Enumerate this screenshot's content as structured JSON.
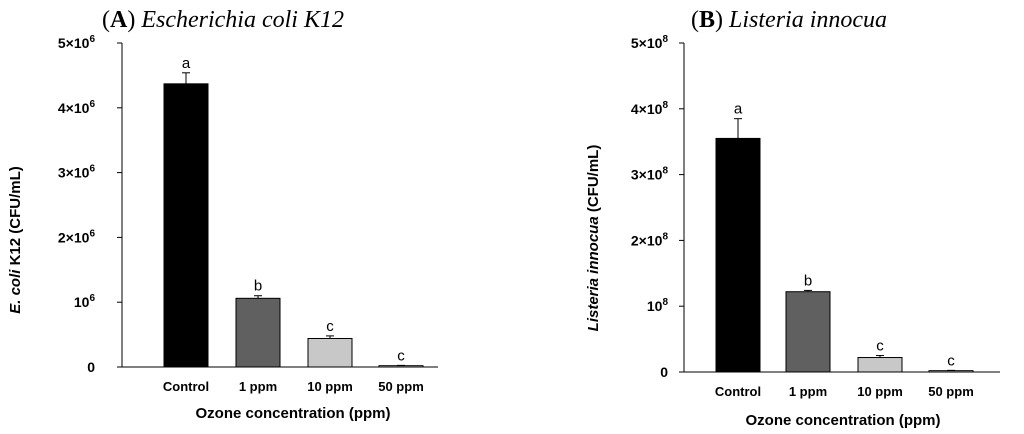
{
  "chart_data": [
    {
      "type": "bar",
      "panel_label": "A",
      "title": "Escherichia coli K12",
      "ylabel_italic": "E. coli",
      "ylabel_rest": " K12 (CFU/mL)",
      "xlabel": "Ozone concentration (ppm)",
      "categories": [
        "Control",
        "1 ppm",
        "10 ppm",
        "50 ppm"
      ],
      "values": [
        4370000,
        1060000,
        440000,
        20000
      ],
      "errors": [
        170000,
        40000,
        40000,
        5000
      ],
      "significance": [
        "a",
        "b",
        "c",
        "c"
      ],
      "colors": [
        "#000000",
        "#606060",
        "#c8c8c8",
        "#ffffff"
      ],
      "ylim": [
        0,
        5000000
      ],
      "yticks": [
        {
          "value": 0,
          "base": "0",
          "exp": ""
        },
        {
          "value": 1000000,
          "base": "10",
          "exp": "6"
        },
        {
          "value": 2000000,
          "base": "2×10",
          "exp": "6"
        },
        {
          "value": 3000000,
          "base": "3×10",
          "exp": "6"
        },
        {
          "value": 4000000,
          "base": "4×10",
          "exp": "6"
        },
        {
          "value": 5000000,
          "base": "5×10",
          "exp": "6"
        }
      ]
    },
    {
      "type": "bar",
      "panel_label": "B",
      "title": "Listeria innocua",
      "ylabel_italic": "Listeria innocua",
      "ylabel_rest": " (CFU/mL)",
      "xlabel": "Ozone concentration (ppm)",
      "categories": [
        "Control",
        "1 ppm",
        "10 ppm",
        "50 ppm"
      ],
      "values": [
        355000000,
        122000000,
        22000000,
        2000000
      ],
      "errors": [
        30000000,
        2000000,
        3000000,
        500000
      ],
      "significance": [
        "a",
        "b",
        "c",
        "c"
      ],
      "colors": [
        "#000000",
        "#606060",
        "#c8c8c8",
        "#ffffff"
      ],
      "ylim": [
        0,
        500000000
      ],
      "yticks": [
        {
          "value": 0,
          "base": "0",
          "exp": ""
        },
        {
          "value": 100000000,
          "base": "10",
          "exp": "8"
        },
        {
          "value": 200000000,
          "base": "2×10",
          "exp": "8"
        },
        {
          "value": 300000000,
          "base": "3×10",
          "exp": "8"
        },
        {
          "value": 400000000,
          "base": "4×10",
          "exp": "8"
        },
        {
          "value": 500000000,
          "base": "5×10",
          "exp": "8"
        }
      ]
    }
  ]
}
